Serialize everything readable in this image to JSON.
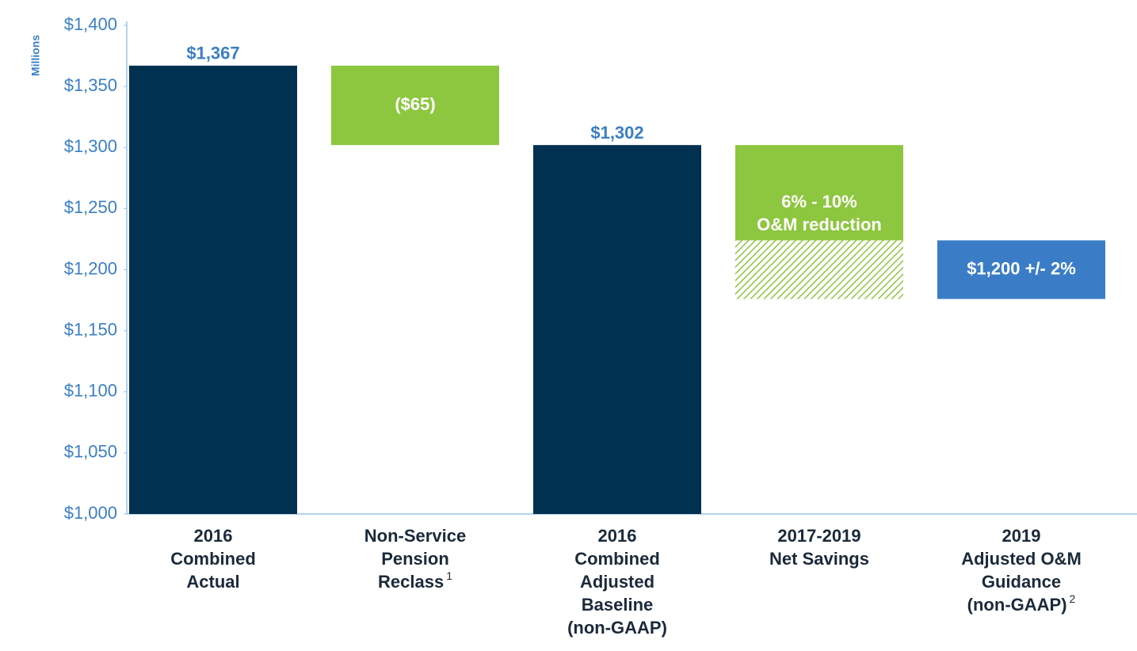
{
  "chart_data": {
    "type": "waterfall",
    "y_label": "Millions",
    "categories": [
      [
        "2016",
        "Combined",
        "Actual"
      ],
      [
        "Non-Service",
        "Pension",
        "Reclass"
      ],
      [
        "2016",
        "Combined",
        "Adjusted",
        "Baseline",
        "(non-GAAP)"
      ],
      [
        "2017-2019",
        "Net Savings"
      ],
      [
        "2019",
        "Adjusted O&M",
        "Guidance",
        "(non-GAAP)"
      ]
    ],
    "category_notes": [
      null,
      "1",
      null,
      null,
      "2"
    ],
    "kinds": [
      "total",
      "delta",
      "total",
      "delta",
      "range"
    ],
    "values": [
      1367,
      -65,
      1302,
      -78,
      1200
    ],
    "ranges": [
      null,
      null,
      null,
      -48,
      24
    ],
    "value_labels": [
      "$1,367",
      "($65)",
      "$1,302",
      null,
      null
    ],
    "annotations": [
      "6% - 10%",
      "O&M reduction",
      "$1,200 +/- 2%"
    ],
    "colors": {
      "total": "#003150",
      "delta": "#8dc63f",
      "range": "#3a7dc6"
    },
    "ylim": [
      1000,
      1400
    ],
    "yticks": [
      {
        "value": 1000,
        "label": "$1,000"
      },
      {
        "value": 1050,
        "label": "$1,050"
      },
      {
        "value": 1100,
        "label": "$1,100"
      },
      {
        "value": 1150,
        "label": "$1,150"
      },
      {
        "value": 1200,
        "label": "$1,200"
      },
      {
        "value": 1250,
        "label": "$1,250"
      },
      {
        "value": 1300,
        "label": "$1,300"
      },
      {
        "value": 1350,
        "label": "$1,350"
      },
      {
        "value": 1400,
        "label": "$1,400"
      }
    ]
  }
}
